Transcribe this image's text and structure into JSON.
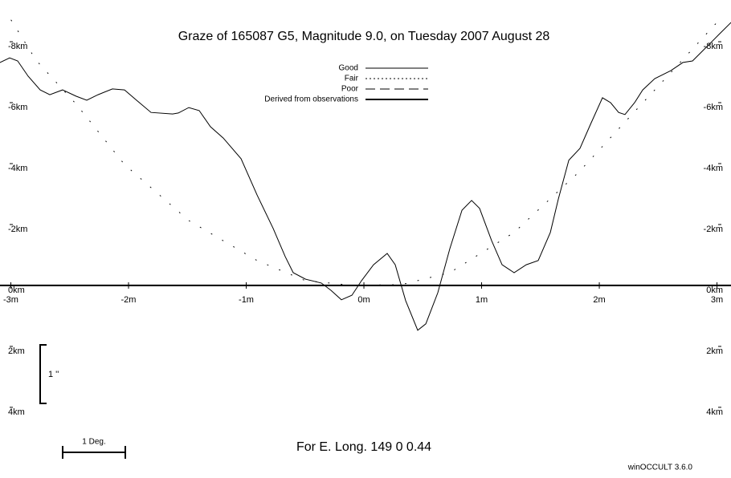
{
  "chart_data": {
    "type": "line",
    "title": "Graze of   165087  G5,  Magnitude   9.0,  on Tuesday  2007  August  28",
    "footer": "For E. Long.  149  0  0.44",
    "credit": "winOCCULT 3.6.0",
    "scale_deg_label": "1 Deg.",
    "scale_arcsec_label": "1 ''",
    "xlim": [
      -3.092,
      3.119
    ],
    "ylim": [
      -9.37,
      6.32
    ],
    "xticks": [
      {
        "value": -3,
        "label": "-3m"
      },
      {
        "value": -2,
        "label": "-2m"
      },
      {
        "value": -1,
        "label": "-1m"
      },
      {
        "value": 0,
        "label": "0m"
      },
      {
        "value": 1,
        "label": "1m"
      },
      {
        "value": 2,
        "label": "2m"
      },
      {
        "value": 3,
        "label": "3m"
      }
    ],
    "yticks": [
      {
        "value": -8,
        "label": "-8km"
      },
      {
        "value": -6,
        "label": "-6km"
      },
      {
        "value": -4,
        "label": "-4km"
      },
      {
        "value": -2,
        "label": "-2km"
      },
      {
        "value": 0,
        "label": "0km"
      },
      {
        "value": 2,
        "label": "2km"
      },
      {
        "value": 4,
        "label": "4km"
      }
    ],
    "legend": [
      {
        "label": "Good",
        "dash": "none",
        "width": 1
      },
      {
        "label": "Fair",
        "dash": "2,3",
        "width": 1
      },
      {
        "label": "Poor",
        "dash": "12,6",
        "width": 1
      },
      {
        "label": "Derived from observations",
        "dash": "none",
        "width": 2
      }
    ],
    "series": [
      {
        "color": "#000000",
        "dash": "none",
        "x": [
          -3.092,
          -3.01,
          -2.942,
          -2.853,
          -2.751,
          -2.669,
          -2.56,
          -2.444,
          -2.355,
          -2.259,
          -2.137,
          -2.034,
          -1.932,
          -1.809,
          -1.625,
          -1.577,
          -1.488,
          -1.399,
          -1.304,
          -1.195,
          -1.044,
          -0.908,
          -0.771,
          -0.669,
          -0.601,
          -0.498,
          -0.362,
          -0.28,
          -0.191,
          -0.102,
          -0.02,
          0.082,
          0.198,
          0.266,
          0.355,
          0.457,
          0.526,
          0.628,
          0.73,
          0.833,
          0.915,
          0.983,
          1.085,
          1.174,
          1.276,
          1.379,
          1.481,
          1.584,
          1.652,
          1.741,
          1.836,
          1.925,
          2.027,
          2.096,
          2.164,
          2.218,
          2.3,
          2.369,
          2.471,
          2.608,
          2.71,
          2.792,
          2.901,
          3.017,
          3.119
        ],
        "values": [
          -7.32,
          -7.47,
          -7.37,
          -6.87,
          -6.42,
          -6.26,
          -6.42,
          -6.21,
          -6.08,
          -6.26,
          -6.45,
          -6.42,
          -6.08,
          -5.68,
          -5.63,
          -5.66,
          -5.84,
          -5.74,
          -5.21,
          -4.84,
          -4.16,
          -2.97,
          -1.87,
          -0.95,
          -0.42,
          -0.21,
          -0.08,
          0.16,
          0.47,
          0.32,
          -0.16,
          -0.68,
          -1.05,
          -0.68,
          0.5,
          1.47,
          1.26,
          0.24,
          -1.21,
          -2.47,
          -2.79,
          -2.53,
          -1.47,
          -0.68,
          -0.42,
          -0.68,
          -0.82,
          -1.74,
          -2.84,
          -4.11,
          -4.5,
          -5.29,
          -6.16,
          -6.0,
          -5.68,
          -5.61,
          -6.0,
          -6.42,
          -6.79,
          -7.05,
          -7.32,
          -7.37,
          -7.79,
          -8.24,
          -8.63
        ]
      },
      {
        "color": "#000000",
        "dash": "1,15",
        "x": [
          -2.997,
          -2.785,
          -2.444,
          -2.034,
          -1.488,
          -0.908,
          -0.498,
          -0.089,
          0.321,
          0.73,
          1.276,
          1.823,
          2.232,
          2.642,
          3.017
        ],
        "values": [
          -8.71,
          -7.39,
          -5.95,
          -3.97,
          -2.13,
          -0.82,
          -0.16,
          0,
          -0.03,
          -0.42,
          -1.74,
          -3.71,
          -5.42,
          -7.13,
          -8.71
        ]
      }
    ]
  }
}
